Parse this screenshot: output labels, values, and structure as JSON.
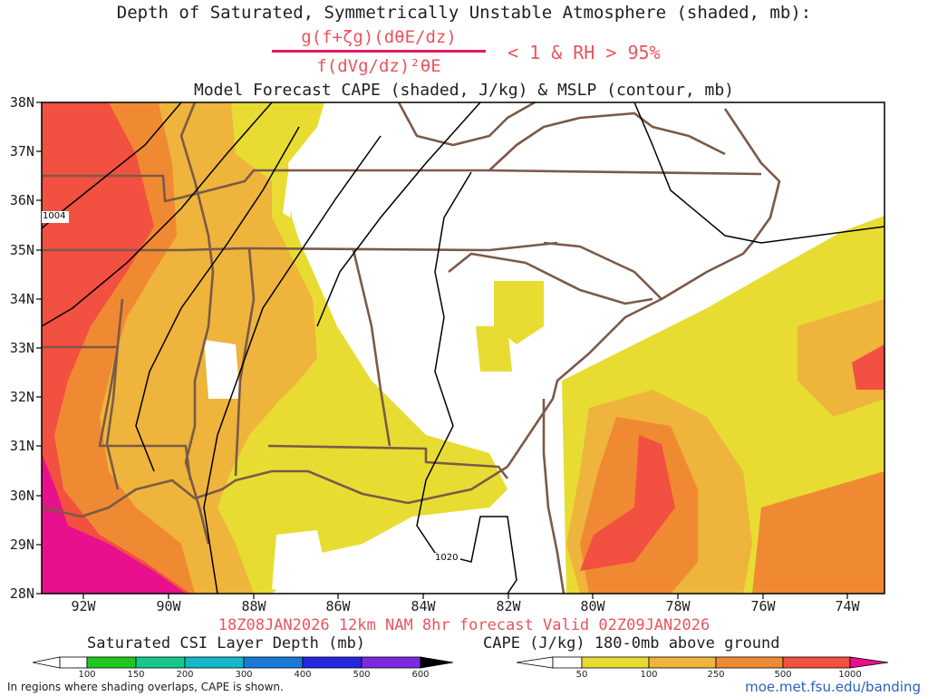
{
  "titles": {
    "line1": "Depth of Saturated, Symmetrically Unstable Atmosphere (shaded, mb):",
    "numerator": "g(f+ζg)(dθE/dz)",
    "denominator": "f(dVg/dz)²θE",
    "condition": "< 1 & RH > 95%",
    "line3": "Model Forecast CAPE (shaded, J/kg) & MSLP (contour, mb)"
  },
  "map": {
    "lat_labels": [
      "38N",
      "37N",
      "36N",
      "35N",
      "34N",
      "33N",
      "32N",
      "31N",
      "30N",
      "29N",
      "28N"
    ],
    "lon_labels": [
      "92W",
      "90W",
      "88W",
      "86W",
      "84W",
      "82W",
      "80W",
      "78W",
      "76W",
      "74W"
    ],
    "contour_labels": [
      "1004",
      "1020"
    ],
    "colors": {
      "border": "#7b5a48",
      "isobar": "#000000"
    }
  },
  "forecast_valid": "18Z08JAN2026 12km NAM 8hr forecast Valid 02Z09JAN2026",
  "csi_colorbar": {
    "label": "Saturated CSI Layer Depth (mb)",
    "ticks": [
      "100",
      "150",
      "200",
      "300",
      "400",
      "500",
      "600"
    ],
    "colors": [
      "#ffffff",
      "#1ec81e",
      "#15c98c",
      "#14b8c8",
      "#1b79d9",
      "#2426e0",
      "#7a2be0",
      "#000000"
    ]
  },
  "cape_colorbar": {
    "label": "CAPE (J/kg) 180-0mb above ground",
    "ticks": [
      "50",
      "100",
      "250",
      "500",
      "1000"
    ],
    "colors": [
      "#ffffff",
      "#e8dc32",
      "#eeb43c",
      "#f08a32",
      "#f25040",
      "#e8108c"
    ]
  },
  "footer": {
    "note": "In regions where shading overlaps, CAPE is shown.",
    "url": "moe.met.fsu.edu/banding"
  }
}
